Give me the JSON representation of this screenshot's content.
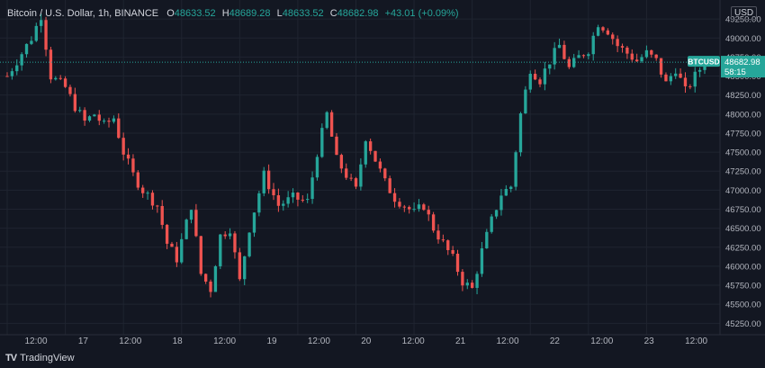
{
  "legend": {
    "symbol": "Bitcoin / U.S. Dollar, 1h, BINANCE",
    "open_label": "O",
    "open": "48633.52",
    "high_label": "H",
    "high": "48689.28",
    "low_label": "L",
    "low": "48633.52",
    "close_label": "C",
    "close": "48682.98",
    "change": "+43.01 (+0.09%)"
  },
  "currency": "USD",
  "price_tag": {
    "symbol": "BTCUSD",
    "price": "48682.98",
    "countdown": "58:15"
  },
  "brand": "TradingView",
  "colors": {
    "background": "#131722",
    "up": "#26a69a",
    "down": "#ef5350",
    "grid": "#1f2430",
    "text": "#b2b5be"
  },
  "chart_data": {
    "type": "candlestick",
    "title": "Bitcoin / U.S. Dollar, 1h, BINANCE",
    "y_axis": {
      "min": 45100,
      "max": 49500,
      "side": "right",
      "ticks": [
        45250,
        45500,
        45750,
        46000,
        46250,
        46500,
        46750,
        47000,
        47250,
        47500,
        47750,
        48000,
        48250,
        48500,
        48750,
        49000,
        49250
      ],
      "tick_labels": [
        "45250.00",
        "45500.00",
        "45750.00",
        "46000.00",
        "46250.00",
        "46500.00",
        "46750.00",
        "47000.00",
        "47250.00",
        "47500.00",
        "47750.00",
        "48000.00",
        "48250.00",
        "48500.00",
        "48750.00",
        "49000.00",
        "49250.00"
      ]
    },
    "x_axis": {
      "tick_labels": [
        "12:00",
        "17",
        "12:00",
        "18",
        "12:00",
        "19",
        "12:00",
        "20",
        "12:00",
        "21",
        "12:00",
        "22",
        "12:00",
        "23",
        "12:00"
      ],
      "tick_hours": [
        12,
        24,
        36,
        48,
        60,
        72,
        84,
        96,
        108,
        120,
        132,
        144,
        156,
        168,
        180
      ]
    },
    "last_price": 48682.98,
    "candle_points_close": [
      [
        0,
        48500
      ],
      [
        3,
        48800
      ],
      [
        5,
        49000
      ],
      [
        7,
        49300
      ],
      [
        9,
        48500
      ],
      [
        12,
        48350
      ],
      [
        14,
        48100
      ],
      [
        16,
        47900
      ],
      [
        18,
        48000
      ],
      [
        20,
        47850
      ],
      [
        22,
        47950
      ],
      [
        24,
        47500
      ],
      [
        26,
        47200
      ],
      [
        28,
        47000
      ],
      [
        31,
        46800
      ],
      [
        33,
        46300
      ],
      [
        35,
        46100
      ],
      [
        38,
        46800
      ],
      [
        40,
        45900
      ],
      [
        42,
        45700
      ],
      [
        44,
        46400
      ],
      [
        46,
        46500
      ],
      [
        48,
        45800
      ],
      [
        50,
        46500
      ],
      [
        53,
        47200
      ],
      [
        56,
        46800
      ],
      [
        59,
        46900
      ],
      [
        62,
        46850
      ],
      [
        64,
        47500
      ],
      [
        66,
        48000
      ],
      [
        68,
        47400
      ],
      [
        70,
        47200
      ],
      [
        72,
        47000
      ],
      [
        74,
        47700
      ],
      [
        76,
        47400
      ],
      [
        78,
        47100
      ],
      [
        80,
        46900
      ],
      [
        82,
        46800
      ],
      [
        84,
        46700
      ],
      [
        86,
        46800
      ],
      [
        88,
        46500
      ],
      [
        90,
        46300
      ],
      [
        92,
        46100
      ],
      [
        94,
        45800
      ],
      [
        96,
        45700
      ],
      [
        98,
        46200
      ],
      [
        100,
        46600
      ],
      [
        102,
        46950
      ],
      [
        104,
        47050
      ],
      [
        106,
        48000
      ],
      [
        108,
        48600
      ],
      [
        110,
        48450
      ],
      [
        112,
        48700
      ],
      [
        114,
        48900
      ],
      [
        116,
        48600
      ],
      [
        118,
        48750
      ],
      [
        120,
        48850
      ],
      [
        122,
        49200
      ],
      [
        124,
        49100
      ],
      [
        126,
        48900
      ],
      [
        128,
        48800
      ],
      [
        130,
        48700
      ],
      [
        132,
        48800
      ],
      [
        134,
        48700
      ],
      [
        136,
        48400
      ],
      [
        138,
        48600
      ],
      [
        140,
        48300
      ],
      [
        142,
        48500
      ],
      [
        144,
        48683
      ]
    ]
  }
}
